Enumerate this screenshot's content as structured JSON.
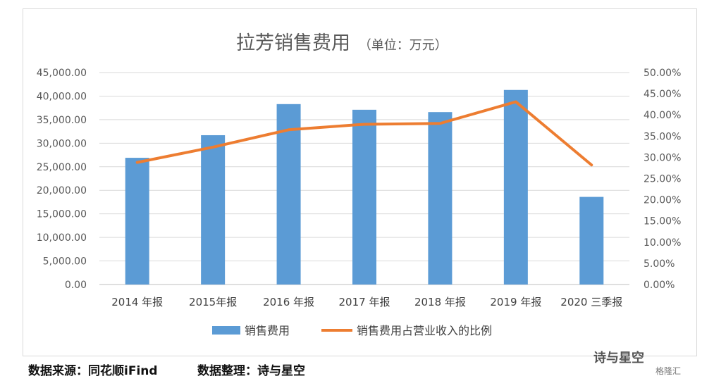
{
  "chart_data": {
    "type": "bar+line",
    "title": "拉芳销售费用",
    "title_unit": "（单位：万元）",
    "categories": [
      "2014 年报",
      "2015年报",
      "2016 年报",
      "2017 年报",
      "2018 年报",
      "2019 年报",
      "2020 三季报"
    ],
    "series": [
      {
        "name": "销售费用",
        "type": "bar",
        "axis": "left",
        "color": "#5b9bd5",
        "values": [
          26900,
          31700,
          38300,
          37100,
          36600,
          41300,
          18600
        ]
      },
      {
        "name": "销售费用占营业收入的比例",
        "type": "line",
        "axis": "right",
        "color": "#ed7d31",
        "values": [
          0.288,
          0.324,
          0.365,
          0.378,
          0.38,
          0.431,
          0.282
        ]
      }
    ],
    "left_axis": {
      "ylim": [
        0,
        45000
      ],
      "ticks": [
        "45,000.00",
        "40,000.00",
        "35,000.00",
        "30,000.00",
        "25,000.00",
        "20,000.00",
        "15,000.00",
        "10,000.00",
        "5,000.00",
        "0.00"
      ]
    },
    "right_axis": {
      "ylim": [
        0,
        0.5
      ],
      "ticks": [
        "50.00%",
        "45.00%",
        "40.00%",
        "35.00%",
        "30.00%",
        "25.00%",
        "20.00%",
        "15.00%",
        "10.00%",
        "5.00%",
        "0.00%"
      ]
    },
    "grid": true,
    "legend_position": "bottom"
  },
  "footer": {
    "source": "数据来源：同花顺iFind",
    "organizer": "数据整理：诗与星空"
  },
  "watermark": {
    "name": "诗与星空",
    "brand": "格隆汇"
  }
}
